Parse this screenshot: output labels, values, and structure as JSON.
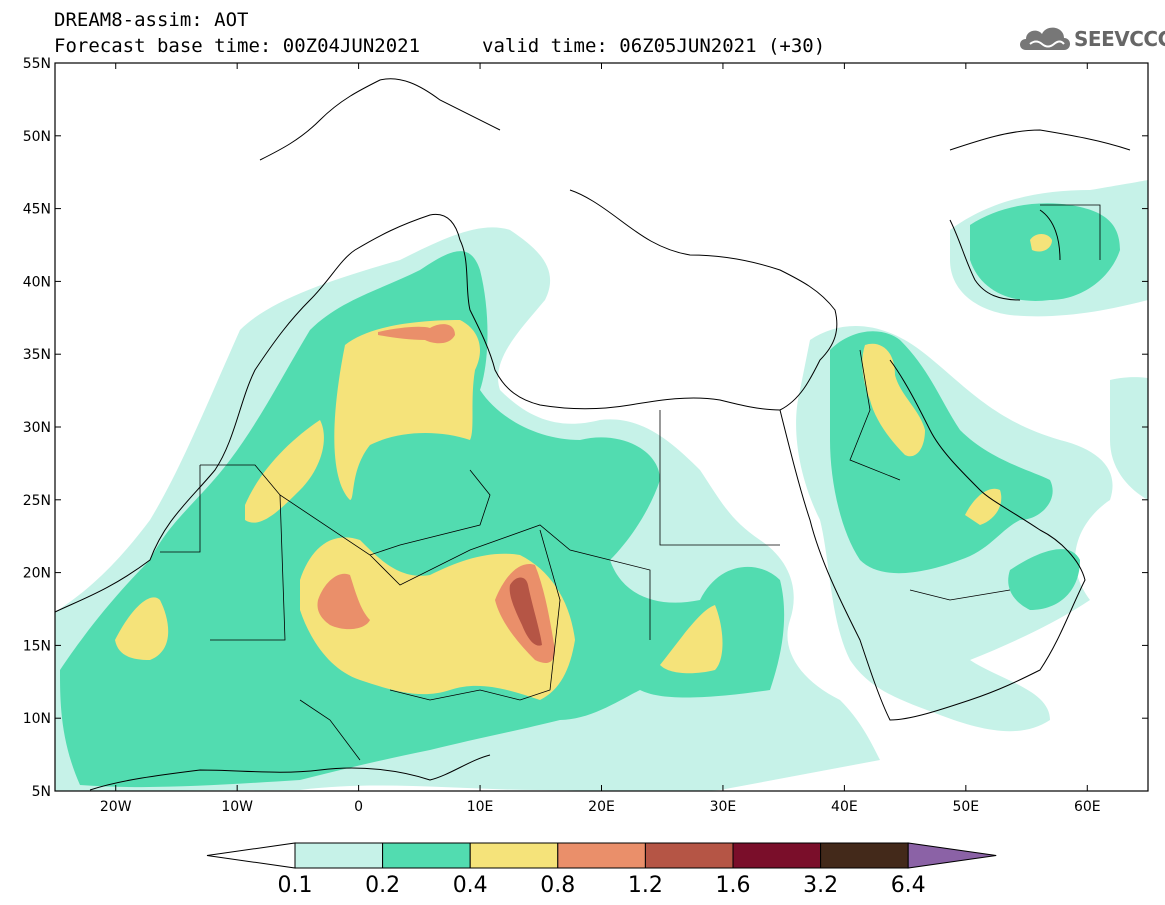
{
  "title": {
    "line1": "DREAM8-assim: AOT",
    "base_time": "Forecast base time: 00Z04JUN2021",
    "valid_time": "valid time: 06Z05JUN2021 (+30)"
  },
  "logo": {
    "text": "SEEVCCC",
    "icon": "cloud-icon"
  },
  "map": {
    "projection": "lat-lon",
    "lon_range": [
      -25,
      65
    ],
    "lat_range": [
      5,
      55
    ],
    "lat_ticks": [
      "5N",
      "10N",
      "15N",
      "20N",
      "25N",
      "30N",
      "35N",
      "40N",
      "45N",
      "50N",
      "55N"
    ],
    "lon_ticks": [
      "20W",
      "10W",
      "0",
      "10E",
      "20E",
      "30E",
      "40E",
      "50E",
      "60E"
    ]
  },
  "colorbar": {
    "labels": [
      "0.1",
      "0.2",
      "0.4",
      "0.8",
      "1.2",
      "1.6",
      "3.2",
      "6.4"
    ],
    "colors": [
      "#c6f2e8",
      "#52dcb0",
      "#f5e37a",
      "#ea8f6a",
      "#b55545",
      "#7a0e2a",
      "#43291a",
      "#8b62a6"
    ],
    "under_color": "#ffffff",
    "over_color": "#8b62a6"
  }
}
